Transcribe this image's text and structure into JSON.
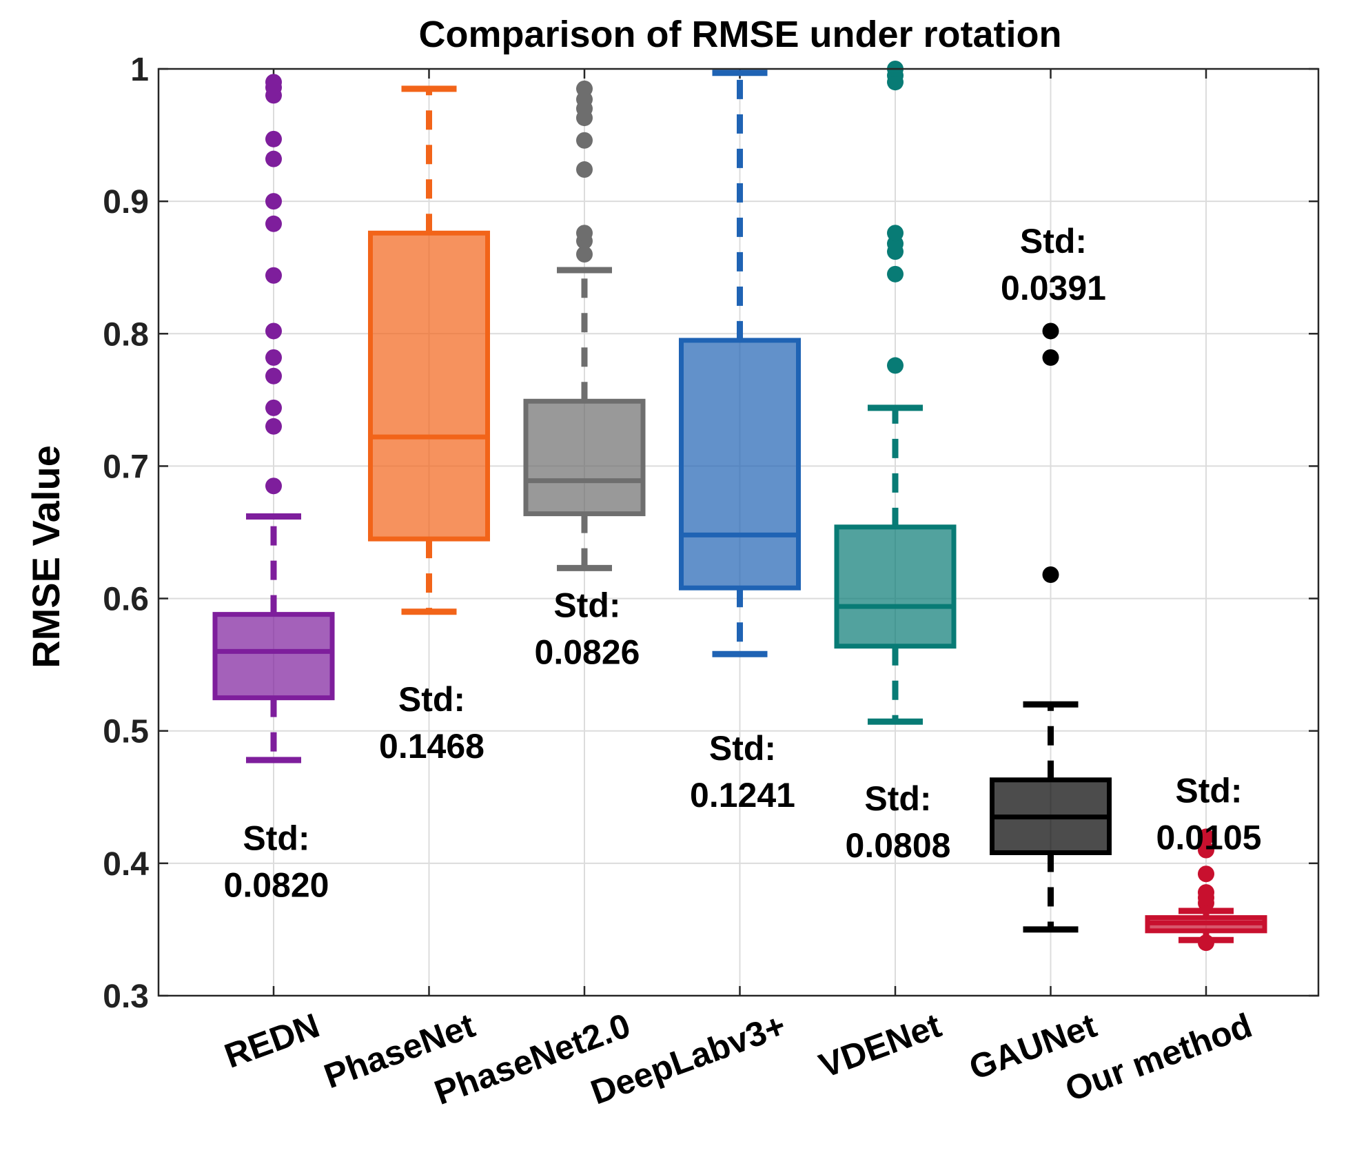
{
  "chart_data": {
    "type": "boxplot",
    "title": "Comparison of RMSE under rotation",
    "xlabel": "",
    "ylabel": "RMSE Value",
    "ylim": [
      0.3,
      1.0
    ],
    "yticks": [
      0.3,
      0.4,
      0.5,
      0.6,
      0.7,
      0.8,
      0.9,
      1.0
    ],
    "ytick_labels": [
      "0.3",
      "0.4",
      "0.5",
      "0.6",
      "0.7",
      "0.8",
      "0.9",
      "1"
    ],
    "grid": true,
    "categories": [
      "REDN",
      "PhaseNet",
      "PhaseNet2.0",
      "DeepLabv3+",
      "VDENet",
      "GAUNet",
      "Our method"
    ],
    "series": [
      {
        "name": "REDN",
        "color": "#7e1e9c",
        "q1": 0.525,
        "median": 0.56,
        "q3": 0.588,
        "whisker_low": 0.478,
        "whisker_high": 0.662,
        "outliers": [
          0.685,
          0.73,
          0.744,
          0.768,
          0.782,
          0.802,
          0.844,
          0.883,
          0.9,
          0.932,
          0.947,
          0.98,
          0.986,
          0.99
        ],
        "std_line1": "Std:",
        "std_line2": "0.0820",
        "std_anchor": 0.41
      },
      {
        "name": "PhaseNet",
        "color": "#f26419",
        "q1": 0.645,
        "median": 0.722,
        "q3": 0.876,
        "whisker_low": 0.59,
        "whisker_high": 0.985,
        "outliers": [],
        "std_line1": "Std:",
        "std_line2": "0.1468",
        "std_anchor": 0.515
      },
      {
        "name": "PhaseNet2.0",
        "color": "#6e6e6e",
        "q1": 0.664,
        "median": 0.689,
        "q3": 0.749,
        "whisker_low": 0.623,
        "whisker_high": 0.848,
        "outliers": [
          0.86,
          0.87,
          0.876,
          0.924,
          0.946,
          0.963,
          0.97,
          0.977,
          0.985
        ],
        "std_line1": "Std:",
        "std_line2": "0.0826",
        "std_anchor": 0.586
      },
      {
        "name": "DeepLabv3+",
        "color": "#1f63b4",
        "q1": 0.608,
        "median": 0.648,
        "q3": 0.795,
        "whisker_low": 0.558,
        "whisker_high": 0.997,
        "outliers": [],
        "std_line1": "Std:",
        "std_line2": "0.1241",
        "std_anchor": 0.478
      },
      {
        "name": "VDENet",
        "color": "#087b75",
        "q1": 0.564,
        "median": 0.594,
        "q3": 0.654,
        "whisker_low": 0.507,
        "whisker_high": 0.744,
        "outliers": [
          0.776,
          0.845,
          0.862,
          0.868,
          0.876,
          0.99,
          0.995,
          1.0
        ],
        "std_line1": "Std:",
        "std_line2": "0.0808",
        "std_anchor": 0.44
      },
      {
        "name": "GAUNet",
        "color": "#000000",
        "q1": 0.408,
        "median": 0.435,
        "q3": 0.463,
        "whisker_low": 0.35,
        "whisker_high": 0.52,
        "outliers": [
          0.618,
          0.782,
          0.802
        ],
        "std_line1": "Std:",
        "std_line2": "0.0391",
        "std_anchor": 0.861
      },
      {
        "name": "Our method",
        "color": "#c8102e",
        "q1": 0.349,
        "median": 0.355,
        "q3": 0.359,
        "whisker_low": 0.342,
        "whisker_high": 0.364,
        "outliers": [
          0.34,
          0.37,
          0.374,
          0.378,
          0.392,
          0.41,
          0.42
        ],
        "std_line1": "Std:",
        "std_line2": "0.0105",
        "std_anchor": 0.446
      }
    ]
  }
}
